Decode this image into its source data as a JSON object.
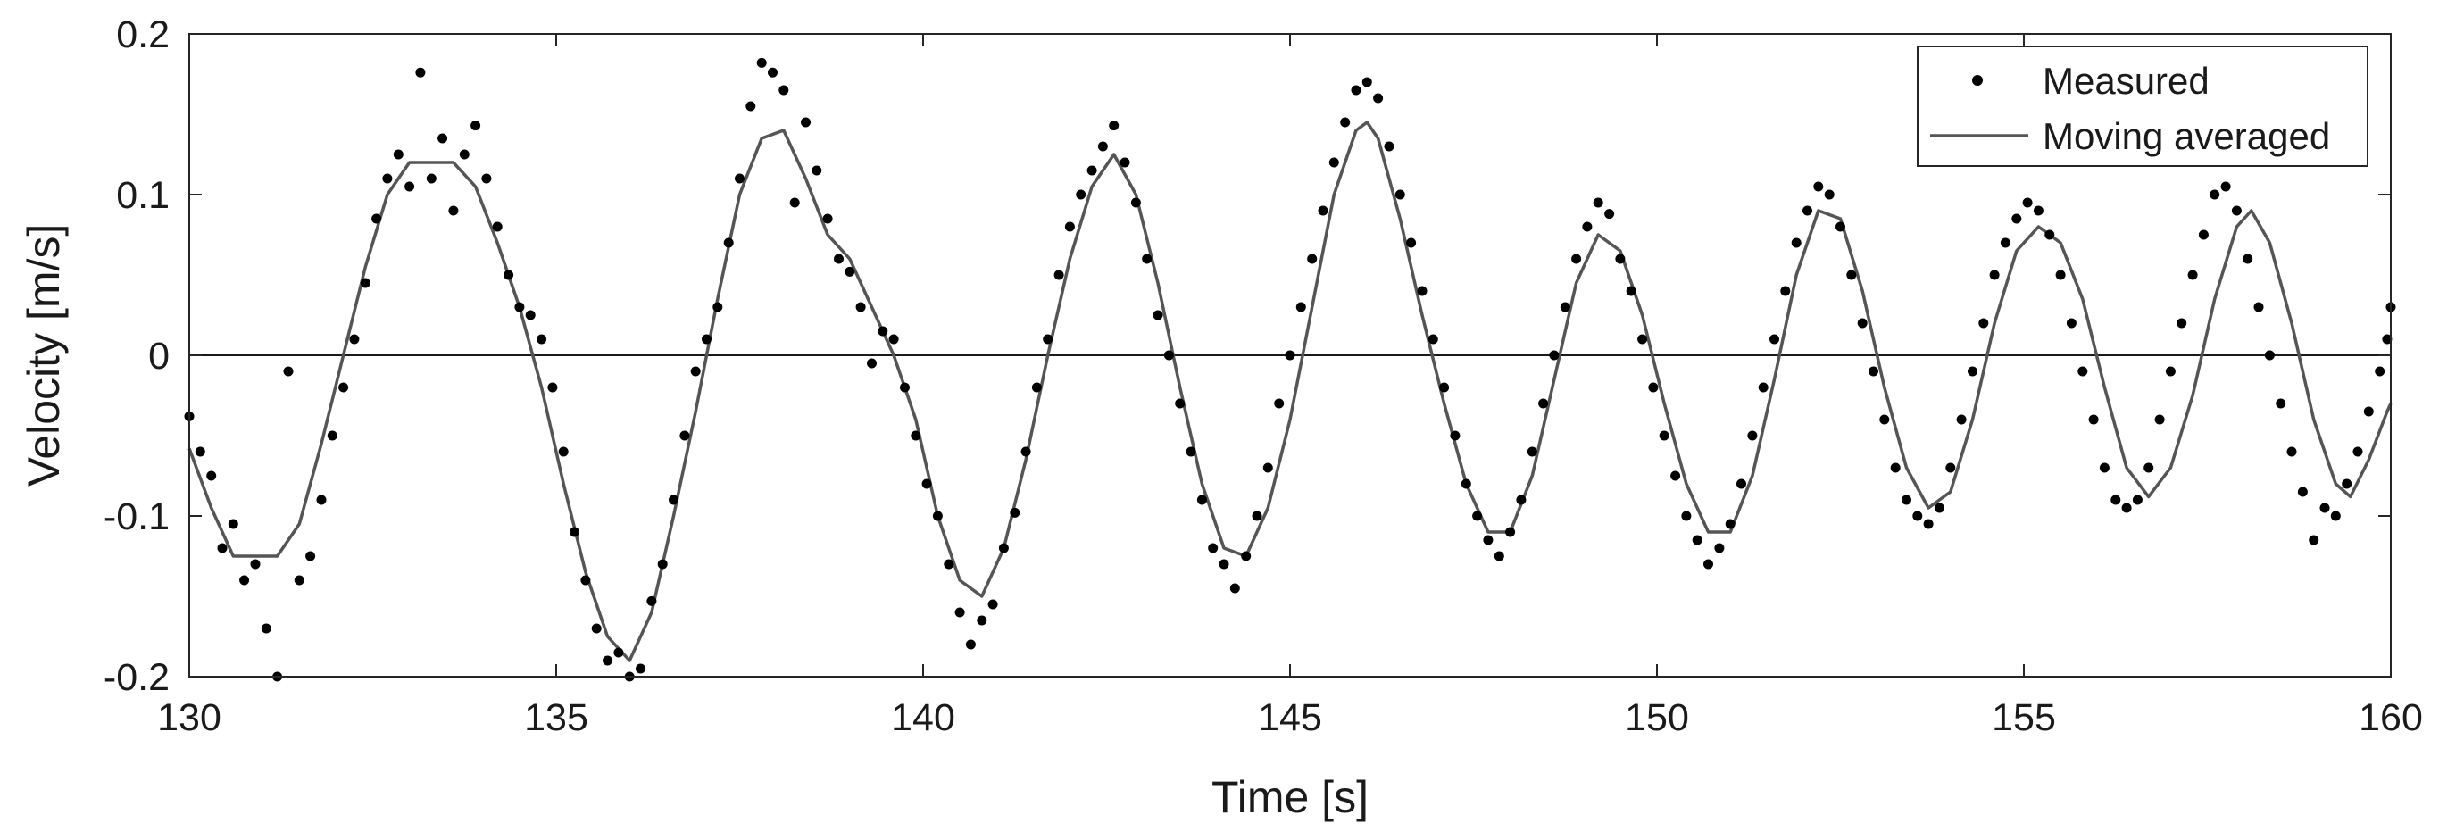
{
  "chart_data": {
    "type": "line",
    "xlabel": "Time [s]",
    "ylabel": "Velocity [m/s]",
    "xlim": [
      130,
      160
    ],
    "ylim": [
      -0.2,
      0.2
    ],
    "xticks": [
      130,
      135,
      140,
      145,
      150,
      155,
      160
    ],
    "yticks": [
      -0.2,
      -0.1,
      0,
      0.1,
      0.2
    ],
    "yticklabels": [
      "-0.2",
      "-0.1",
      "0",
      "0.1",
      "0.2"
    ],
    "grid": false,
    "zero_line": true,
    "legend": {
      "placement": "top-right"
    },
    "series": [
      {
        "name": "Measured",
        "kind": "scatter",
        "color": "#000000",
        "points": [
          [
            130.0,
            -0.038
          ],
          [
            130.15,
            -0.06
          ],
          [
            130.3,
            -0.075
          ],
          [
            130.45,
            -0.12
          ],
          [
            130.6,
            -0.105
          ],
          [
            130.75,
            -0.14
          ],
          [
            130.9,
            -0.13
          ],
          [
            131.05,
            -0.17
          ],
          [
            131.2,
            -0.2
          ],
          [
            131.35,
            -0.01
          ],
          [
            131.5,
            -0.14
          ],
          [
            131.65,
            -0.125
          ],
          [
            131.8,
            -0.09
          ],
          [
            131.95,
            -0.05
          ],
          [
            132.1,
            -0.02
          ],
          [
            132.25,
            0.01
          ],
          [
            132.4,
            0.045
          ],
          [
            132.55,
            0.085
          ],
          [
            132.7,
            0.11
          ],
          [
            132.85,
            0.125
          ],
          [
            133.0,
            0.105
          ],
          [
            133.15,
            0.176
          ],
          [
            133.3,
            0.11
          ],
          [
            133.45,
            0.135
          ],
          [
            133.6,
            0.09
          ],
          [
            133.75,
            0.125
          ],
          [
            133.9,
            0.143
          ],
          [
            134.05,
            0.11
          ],
          [
            134.2,
            0.08
          ],
          [
            134.35,
            0.05
          ],
          [
            134.5,
            0.03
          ],
          [
            134.65,
            0.025
          ],
          [
            134.8,
            0.01
          ],
          [
            134.95,
            -0.02
          ],
          [
            135.1,
            -0.06
          ],
          [
            135.25,
            -0.11
          ],
          [
            135.4,
            -0.14
          ],
          [
            135.55,
            -0.17
          ],
          [
            135.7,
            -0.19
          ],
          [
            135.85,
            -0.185
          ],
          [
            136.0,
            -0.2
          ],
          [
            136.15,
            -0.195
          ],
          [
            136.3,
            -0.153
          ],
          [
            136.45,
            -0.13
          ],
          [
            136.6,
            -0.09
          ],
          [
            136.75,
            -0.05
          ],
          [
            136.9,
            -0.01
          ],
          [
            137.05,
            0.01
          ],
          [
            137.2,
            0.03
          ],
          [
            137.35,
            0.07
          ],
          [
            137.5,
            0.11
          ],
          [
            137.65,
            0.155
          ],
          [
            137.8,
            0.182
          ],
          [
            137.95,
            0.176
          ],
          [
            138.1,
            0.165
          ],
          [
            138.25,
            0.095
          ],
          [
            138.4,
            0.145
          ],
          [
            138.55,
            0.115
          ],
          [
            138.7,
            0.085
          ],
          [
            138.85,
            0.06
          ],
          [
            139.0,
            0.052
          ],
          [
            139.15,
            0.03
          ],
          [
            139.3,
            -0.005
          ],
          [
            139.45,
            0.015
          ],
          [
            139.6,
            0.01
          ],
          [
            139.75,
            -0.02
          ],
          [
            139.9,
            -0.05
          ],
          [
            140.05,
            -0.08
          ],
          [
            140.2,
            -0.1
          ],
          [
            140.35,
            -0.13
          ],
          [
            140.5,
            -0.16
          ],
          [
            140.65,
            -0.18
          ],
          [
            140.8,
            -0.165
          ],
          [
            140.95,
            -0.155
          ],
          [
            141.1,
            -0.12
          ],
          [
            141.25,
            -0.098
          ],
          [
            141.4,
            -0.06
          ],
          [
            141.55,
            -0.02
          ],
          [
            141.7,
            0.01
          ],
          [
            141.85,
            0.05
          ],
          [
            142.0,
            0.08
          ],
          [
            142.15,
            0.1
          ],
          [
            142.3,
            0.115
          ],
          [
            142.45,
            0.13
          ],
          [
            142.6,
            0.143
          ],
          [
            142.75,
            0.12
          ],
          [
            142.9,
            0.095
          ],
          [
            143.05,
            0.06
          ],
          [
            143.2,
            0.025
          ],
          [
            143.35,
            0.0
          ],
          [
            143.5,
            -0.03
          ],
          [
            143.65,
            -0.06
          ],
          [
            143.8,
            -0.09
          ],
          [
            143.95,
            -0.12
          ],
          [
            144.1,
            -0.13
          ],
          [
            144.25,
            -0.145
          ],
          [
            144.4,
            -0.125
          ],
          [
            144.55,
            -0.1
          ],
          [
            144.7,
            -0.07
          ],
          [
            144.85,
            -0.03
          ],
          [
            145.0,
            0.0
          ],
          [
            145.15,
            0.03
          ],
          [
            145.3,
            0.06
          ],
          [
            145.45,
            0.09
          ],
          [
            145.6,
            0.12
          ],
          [
            145.75,
            0.145
          ],
          [
            145.9,
            0.165
          ],
          [
            146.05,
            0.17
          ],
          [
            146.2,
            0.16
          ],
          [
            146.35,
            0.13
          ],
          [
            146.5,
            0.1
          ],
          [
            146.65,
            0.07
          ],
          [
            146.8,
            0.04
          ],
          [
            146.95,
            0.01
          ],
          [
            147.1,
            -0.02
          ],
          [
            147.25,
            -0.05
          ],
          [
            147.4,
            -0.08
          ],
          [
            147.55,
            -0.1
          ],
          [
            147.7,
            -0.115
          ],
          [
            147.85,
            -0.125
          ],
          [
            148.0,
            -0.11
          ],
          [
            148.15,
            -0.09
          ],
          [
            148.3,
            -0.06
          ],
          [
            148.45,
            -0.03
          ],
          [
            148.6,
            0.0
          ],
          [
            148.75,
            0.03
          ],
          [
            148.9,
            0.06
          ],
          [
            149.05,
            0.08
          ],
          [
            149.2,
            0.095
          ],
          [
            149.35,
            0.088
          ],
          [
            149.5,
            0.06
          ],
          [
            149.65,
            0.04
          ],
          [
            149.8,
            0.01
          ],
          [
            149.95,
            -0.02
          ],
          [
            150.1,
            -0.05
          ],
          [
            150.25,
            -0.075
          ],
          [
            150.4,
            -0.1
          ],
          [
            150.55,
            -0.115
          ],
          [
            150.7,
            -0.13
          ],
          [
            150.85,
            -0.12
          ],
          [
            151.0,
            -0.105
          ],
          [
            151.15,
            -0.08
          ],
          [
            151.3,
            -0.05
          ],
          [
            151.45,
            -0.02
          ],
          [
            151.6,
            0.01
          ],
          [
            151.75,
            0.04
          ],
          [
            151.9,
            0.07
          ],
          [
            152.05,
            0.09
          ],
          [
            152.2,
            0.105
          ],
          [
            152.35,
            0.1
          ],
          [
            152.5,
            0.08
          ],
          [
            152.65,
            0.05
          ],
          [
            152.8,
            0.02
          ],
          [
            152.95,
            -0.01
          ],
          [
            153.1,
            -0.04
          ],
          [
            153.25,
            -0.07
          ],
          [
            153.4,
            -0.09
          ],
          [
            153.55,
            -0.1
          ],
          [
            153.7,
            -0.105
          ],
          [
            153.85,
            -0.095
          ],
          [
            154.0,
            -0.07
          ],
          [
            154.15,
            -0.04
          ],
          [
            154.3,
            -0.01
          ],
          [
            154.45,
            0.02
          ],
          [
            154.6,
            0.05
          ],
          [
            154.75,
            0.07
          ],
          [
            154.9,
            0.085
          ],
          [
            155.05,
            0.095
          ],
          [
            155.2,
            0.09
          ],
          [
            155.35,
            0.075
          ],
          [
            155.5,
            0.05
          ],
          [
            155.65,
            0.02
          ],
          [
            155.8,
            -0.01
          ],
          [
            155.95,
            -0.04
          ],
          [
            156.1,
            -0.07
          ],
          [
            156.25,
            -0.09
          ],
          [
            156.4,
            -0.095
          ],
          [
            156.55,
            -0.09
          ],
          [
            156.7,
            -0.07
          ],
          [
            156.85,
            -0.04
          ],
          [
            157.0,
            -0.01
          ],
          [
            157.15,
            0.02
          ],
          [
            157.3,
            0.05
          ],
          [
            157.45,
            0.075
          ],
          [
            157.6,
            0.1
          ],
          [
            157.75,
            0.105
          ],
          [
            157.9,
            0.09
          ],
          [
            158.05,
            0.06
          ],
          [
            158.2,
            0.03
          ],
          [
            158.35,
            0.0
          ],
          [
            158.5,
            -0.03
          ],
          [
            158.65,
            -0.06
          ],
          [
            158.8,
            -0.085
          ],
          [
            158.95,
            -0.115
          ],
          [
            159.1,
            -0.095
          ],
          [
            159.25,
            -0.1
          ],
          [
            159.4,
            -0.08
          ],
          [
            159.55,
            -0.06
          ],
          [
            159.7,
            -0.035
          ],
          [
            159.85,
            -0.01
          ],
          [
            159.95,
            0.01
          ],
          [
            160.0,
            0.03
          ]
        ]
      },
      {
        "name": "Moving averaged",
        "kind": "line",
        "color": "#555555",
        "points": [
          [
            130.0,
            -0.058
          ],
          [
            130.3,
            -0.095
          ],
          [
            130.6,
            -0.125
          ],
          [
            130.9,
            -0.125
          ],
          [
            131.2,
            -0.125
          ],
          [
            131.5,
            -0.105
          ],
          [
            131.8,
            -0.055
          ],
          [
            132.1,
            0.0
          ],
          [
            132.4,
            0.055
          ],
          [
            132.7,
            0.1
          ],
          [
            133.0,
            0.12
          ],
          [
            133.3,
            0.12
          ],
          [
            133.6,
            0.12
          ],
          [
            133.9,
            0.105
          ],
          [
            134.2,
            0.07
          ],
          [
            134.5,
            0.03
          ],
          [
            134.8,
            -0.02
          ],
          [
            135.1,
            -0.08
          ],
          [
            135.4,
            -0.135
          ],
          [
            135.7,
            -0.175
          ],
          [
            136.0,
            -0.19
          ],
          [
            136.3,
            -0.16
          ],
          [
            136.6,
            -0.1
          ],
          [
            136.9,
            -0.035
          ],
          [
            137.2,
            0.035
          ],
          [
            137.5,
            0.1
          ],
          [
            137.8,
            0.135
          ],
          [
            138.1,
            0.14
          ],
          [
            138.4,
            0.11
          ],
          [
            138.7,
            0.075
          ],
          [
            139.0,
            0.06
          ],
          [
            139.3,
            0.03
          ],
          [
            139.6,
            0.0
          ],
          [
            139.9,
            -0.04
          ],
          [
            140.2,
            -0.1
          ],
          [
            140.5,
            -0.14
          ],
          [
            140.8,
            -0.15
          ],
          [
            141.1,
            -0.12
          ],
          [
            141.4,
            -0.065
          ],
          [
            141.7,
            0.0
          ],
          [
            142.0,
            0.06
          ],
          [
            142.3,
            0.105
          ],
          [
            142.6,
            0.125
          ],
          [
            142.9,
            0.1
          ],
          [
            143.2,
            0.045
          ],
          [
            143.5,
            -0.02
          ],
          [
            143.8,
            -0.08
          ],
          [
            144.1,
            -0.12
          ],
          [
            144.4,
            -0.125
          ],
          [
            144.7,
            -0.095
          ],
          [
            145.0,
            -0.04
          ],
          [
            145.3,
            0.03
          ],
          [
            145.6,
            0.1
          ],
          [
            145.9,
            0.14
          ],
          [
            146.05,
            0.145
          ],
          [
            146.2,
            0.135
          ],
          [
            146.5,
            0.085
          ],
          [
            146.8,
            0.025
          ],
          [
            147.1,
            -0.03
          ],
          [
            147.4,
            -0.08
          ],
          [
            147.7,
            -0.11
          ],
          [
            148.0,
            -0.11
          ],
          [
            148.3,
            -0.075
          ],
          [
            148.6,
            -0.015
          ],
          [
            148.9,
            0.045
          ],
          [
            149.2,
            0.075
          ],
          [
            149.5,
            0.065
          ],
          [
            149.8,
            0.025
          ],
          [
            150.1,
            -0.03
          ],
          [
            150.4,
            -0.08
          ],
          [
            150.7,
            -0.11
          ],
          [
            151.0,
            -0.11
          ],
          [
            151.3,
            -0.075
          ],
          [
            151.6,
            -0.015
          ],
          [
            151.9,
            0.05
          ],
          [
            152.2,
            0.09
          ],
          [
            152.5,
            0.085
          ],
          [
            152.8,
            0.04
          ],
          [
            153.1,
            -0.02
          ],
          [
            153.4,
            -0.07
          ],
          [
            153.7,
            -0.095
          ],
          [
            154.0,
            -0.085
          ],
          [
            154.3,
            -0.04
          ],
          [
            154.6,
            0.02
          ],
          [
            154.9,
            0.065
          ],
          [
            155.2,
            0.08
          ],
          [
            155.5,
            0.07
          ],
          [
            155.8,
            0.035
          ],
          [
            156.1,
            -0.02
          ],
          [
            156.4,
            -0.07
          ],
          [
            156.7,
            -0.088
          ],
          [
            157.0,
            -0.07
          ],
          [
            157.3,
            -0.025
          ],
          [
            157.6,
            0.035
          ],
          [
            157.9,
            0.08
          ],
          [
            158.1,
            0.09
          ],
          [
            158.35,
            0.07
          ],
          [
            158.65,
            0.02
          ],
          [
            158.95,
            -0.04
          ],
          [
            159.25,
            -0.08
          ],
          [
            159.45,
            -0.088
          ],
          [
            159.7,
            -0.065
          ],
          [
            159.95,
            -0.035
          ],
          [
            160.0,
            -0.03
          ]
        ]
      }
    ]
  }
}
